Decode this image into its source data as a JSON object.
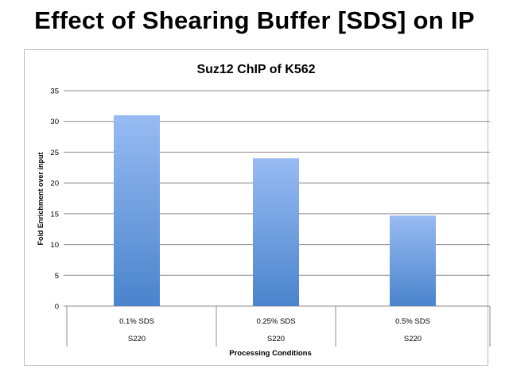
{
  "slide_title": "Effect of Shearing  Buffer  [SDS] on IP",
  "chart_data": {
    "type": "bar",
    "title": "Suz12 ChIP of K562",
    "categories": [
      "0.1% SDS",
      "0.25% SDS",
      "0.5% SDS"
    ],
    "subcategories": [
      "S220",
      "S220",
      "S220"
    ],
    "values": [
      31,
      24,
      14.7
    ],
    "xlabel": "Processing Conditions",
    "ylabel": "Fold Enrichment over input",
    "ylim": [
      0,
      35
    ],
    "yticks": [
      0,
      5,
      10,
      15,
      20,
      25,
      30,
      35
    ],
    "grid": true,
    "bar_color_top": "#98bbf3",
    "bar_color_bottom": "#4a84cc"
  }
}
